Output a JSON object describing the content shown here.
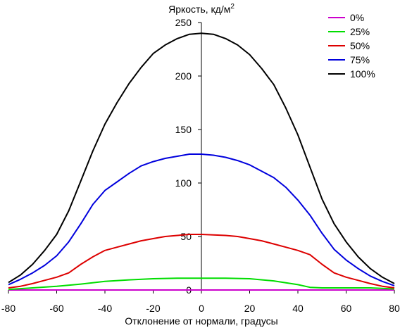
{
  "chart_data": {
    "type": "line",
    "title": "",
    "xlabel": "Отклонение от нормали, градусы",
    "ylabel": "Яркость, кд/м",
    "ylabel_superscript": "2",
    "xlim": [
      -80,
      80
    ],
    "ylim": [
      0,
      250
    ],
    "xticks": [
      -80,
      -60,
      -40,
      -20,
      0,
      20,
      40,
      60,
      80
    ],
    "yticks": [
      0,
      50,
      100,
      150,
      200,
      250
    ],
    "grid": false,
    "legend_position": "top-right",
    "series": [
      {
        "name": "0%",
        "color": "#cc00cc",
        "x": [
          -80,
          80
        ],
        "y": [
          0,
          0
        ]
      },
      {
        "name": "25%",
        "color": "#00dd00",
        "x": [
          -80,
          -70,
          -60,
          -50,
          -40,
          -30,
          -20,
          -10,
          0,
          10,
          20,
          30,
          40,
          45,
          50,
          60,
          70,
          80
        ],
        "y": [
          0.5,
          2,
          3.5,
          5.5,
          8,
          9.5,
          10.5,
          11,
          11,
          11,
          10.5,
          8.5,
          5,
          2.5,
          2,
          2,
          2,
          1
        ]
      },
      {
        "name": "50%",
        "color": "#dd0000",
        "x": [
          -80,
          -75,
          -70,
          -65,
          -60,
          -55,
          -50,
          -45,
          -40,
          -35,
          -30,
          -25,
          -20,
          -15,
          -10,
          -5,
          0,
          5,
          10,
          15,
          20,
          25,
          30,
          35,
          40,
          45,
          50,
          55,
          60,
          65,
          70,
          75,
          80
        ],
        "y": [
          2,
          3.5,
          6,
          9,
          12,
          16,
          24,
          31,
          37,
          40,
          43,
          46,
          48,
          50,
          51,
          52,
          52,
          51.5,
          51,
          50,
          48,
          46,
          43,
          40,
          37,
          33,
          24,
          16,
          12,
          9,
          6,
          3.5,
          2
        ]
      },
      {
        "name": "75%",
        "color": "#0000dd",
        "x": [
          -80,
          -75,
          -70,
          -65,
          -60,
          -55,
          -50,
          -45,
          -40,
          -35,
          -30,
          -25,
          -20,
          -15,
          -10,
          -5,
          0,
          5,
          10,
          15,
          20,
          25,
          30,
          35,
          40,
          45,
          50,
          55,
          60,
          65,
          70,
          75,
          80
        ],
        "y": [
          5,
          10,
          16,
          23,
          32,
          45,
          62,
          80,
          93,
          101,
          109,
          116,
          120,
          123,
          125,
          127,
          127,
          126,
          124,
          121,
          117,
          111,
          105,
          96,
          84,
          70,
          53,
          38,
          28,
          20,
          13,
          8,
          4
        ]
      },
      {
        "name": "100%",
        "color": "#000000",
        "x": [
          -80,
          -75,
          -70,
          -65,
          -60,
          -55,
          -50,
          -45,
          -40,
          -35,
          -30,
          -25,
          -20,
          -15,
          -10,
          -5,
          0,
          5,
          10,
          15,
          20,
          25,
          30,
          35,
          40,
          45,
          50,
          55,
          60,
          65,
          70,
          75,
          80
        ],
        "y": [
          7,
          14,
          24,
          37,
          52,
          74,
          102,
          130,
          155,
          175,
          193,
          208,
          221,
          229,
          235,
          239,
          240,
          239,
          235,
          229,
          220,
          207,
          192,
          170,
          145,
          115,
          85,
          62,
          45,
          31,
          20,
          12,
          6
        ]
      }
    ]
  }
}
